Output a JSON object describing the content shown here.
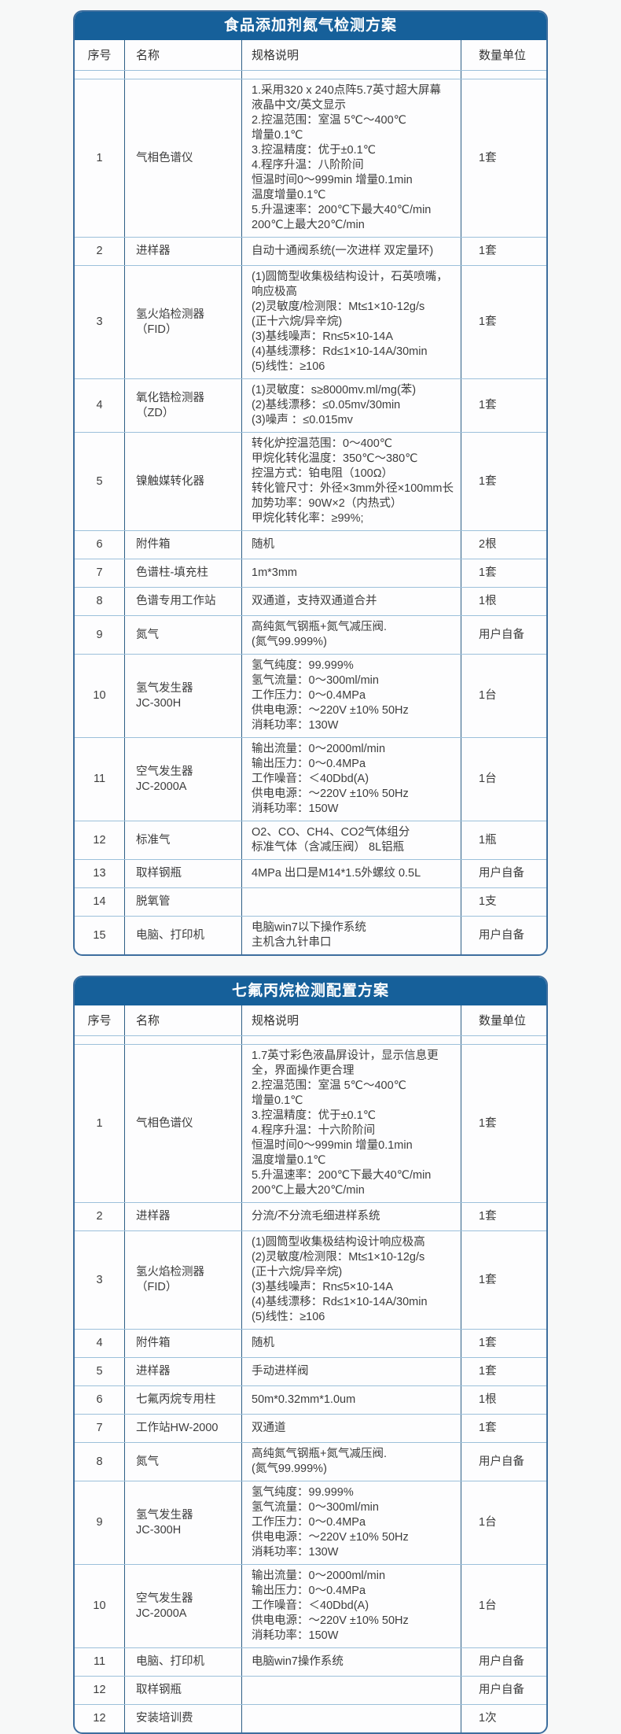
{
  "colors": {
    "header_blue": "#16609a",
    "divider_dark": "#2e5e85",
    "divider_light": "#9cc0da",
    "page_background": "#f7f8f8",
    "text": "#3d3d3d"
  },
  "tables": [
    {
      "title": "食品添加剂氮气检测方案",
      "columns": [
        "序号",
        "名称",
        "规格说明",
        "数量单位"
      ],
      "rows": [
        {
          "num": "1",
          "name": "气相色谱仪",
          "spec": "1.采用320 x 240点阵5.7英寸超大屏幕\n液晶中文/英文显示\n2.控温范围：室温 5℃～400℃\n增量0.1℃\n3.控温精度：优于±0.1℃\n4.程序升温：八阶阶间\n恒温时间0～999min 增量0.1min\n温度增量0.1℃\n5.升温速率：200℃下最大40℃/min\n200℃上最大20℃/min",
          "unit": "1套"
        },
        {
          "num": "2",
          "name": "进样器",
          "spec": "自动十通阀系统(一次进样 双定量环)",
          "unit": "1套"
        },
        {
          "num": "3",
          "name": "氢火焰检测器（FID）",
          "spec": "(1)圆筒型收集极结构设计，石英喷嘴，\n响应极高\n(2)灵敏度/检测限：Mt≤1×10-12g/s\n(正十六烷/异辛烷)\n(3)基线噪声：Rn≤5×10-14A\n(4)基线漂移：Rd≤1×10-14A/30min\n(5)线性：≥106",
          "unit": "1套"
        },
        {
          "num": "4",
          "name": "氧化锆检测器（ZD）",
          "spec": "(1)灵敏度：s≥8000mv.ml/mg(苯)\n(2)基线漂移：≤0.05mv/30min\n(3)噪声 ：≤0.015mv",
          "unit": "1套"
        },
        {
          "num": "5",
          "name": "镍触媒转化器",
          "spec": "转化炉控温范围：0～400℃\n甲烷化转化温度：350℃～380℃\n控温方式：铂电阻（100Ω）\n转化管尺寸：外径×3mm外径×100mm长\n加势功率：90W×2（内热式）\n甲烷化转化率：≥99%;",
          "unit": "1套"
        },
        {
          "num": "6",
          "name": "附件箱",
          "spec": "随机",
          "unit": "2根"
        },
        {
          "num": "7",
          "name": "色谱柱-填充柱",
          "spec": "1m*3mm",
          "unit": "1套"
        },
        {
          "num": "8",
          "name": "色谱专用工作站",
          "spec": "双通道，支持双通道合并",
          "unit": "1根"
        },
        {
          "num": "9",
          "name": "氮气",
          "spec": "高纯氮气钢瓶+氮气减压阀.\n(氮气99.999%)",
          "unit": "用户自备"
        },
        {
          "num": "10",
          "name": "氢气发生器\nJC-300H",
          "spec": "氢气纯度：99.999%\n氢气流量：0～300ml/min\n工作压力：0～0.4MPa\n供电电源：～220V ±10% 50Hz\n消耗功率：130W",
          "unit": "1台"
        },
        {
          "num": "11",
          "name": "空气发生器\nJC-2000A",
          "spec": "输出流量：0～2000ml/min\n输出压力：0～0.4MPa\n工作噪音：＜40Dbd(A)\n供电电源：～220V ±10% 50Hz\n消耗功率：150W",
          "unit": "1台"
        },
        {
          "num": "12",
          "name": "标准气",
          "spec": "O2、CO、CH4、CO2气体组分\n标准气体（含减压阀） 8L铝瓶",
          "unit": "1瓶"
        },
        {
          "num": "13",
          "name": "取样钢瓶",
          "spec": "4MPa 出口是M14*1.5外螺纹 0.5L",
          "unit": "用户自备"
        },
        {
          "num": "14",
          "name": "脱氧管",
          "spec": "",
          "unit": "1支"
        },
        {
          "num": "15",
          "name": "电脑、打印机",
          "spec": "电脑win7以下操作系统\n主机含九针串口",
          "unit": "用户自备"
        }
      ]
    },
    {
      "title": "七氟丙烷检测配置方案",
      "columns": [
        "序号",
        "名称",
        "规格说明",
        "数量单位"
      ],
      "rows": [
        {
          "num": "1",
          "name": "气相色谱仪",
          "spec": "1.7英寸彩色液晶屏设计，显示信息更\n全，界面操作更合理\n2.控温范围：室温 5℃～400℃\n增量0.1℃\n3.控温精度：优于±0.1℃\n4.程序升温：十六阶阶间\n恒温时间0～999min 增量0.1min\n温度增量0.1℃\n5.升温速率：200℃下最大40℃/min\n200℃上最大20℃/min",
          "unit": "1套"
        },
        {
          "num": "2",
          "name": "进样器",
          "spec": "分流/不分流毛细进样系统",
          "unit": "1套"
        },
        {
          "num": "3",
          "name": "氢火焰检测器（FID）",
          "spec": "(1)圆筒型收集极结构设计响应极高\n(2)灵敏度/检测限：Mt≤1×10-12g/s\n(正十六烷/异辛烷)\n(3)基线噪声：Rn≤5×10-14A\n(4)基线漂移：Rd≤1×10-14A/30min\n(5)线性：≥106",
          "unit": "1套"
        },
        {
          "num": "4",
          "name": "附件箱",
          "spec": "随机",
          "unit": "1套"
        },
        {
          "num": "5",
          "name": "进样器",
          "spec": "手动进样阀",
          "unit": "1套"
        },
        {
          "num": "6",
          "name": "七氟丙烷专用柱",
          "spec": "50m*0.32mm*1.0um",
          "unit": "1根"
        },
        {
          "num": "7",
          "name": "工作站HW-2000",
          "spec": "双通道",
          "unit": "1套"
        },
        {
          "num": "8",
          "name": "氮气",
          "spec": "高纯氮气钢瓶+氮气减压阀.\n(氮气99.999%)",
          "unit": "用户自备"
        },
        {
          "num": "9",
          "name": "氢气发生器\nJC-300H",
          "spec": "氢气纯度：99.999%\n氢气流量：0～300ml/min\n工作压力：0～0.4MPa\n供电电源：～220V ±10% 50Hz\n消耗功率：130W",
          "unit": "1台"
        },
        {
          "num": "10",
          "name": "空气发生器\nJC-2000A",
          "spec": "输出流量：0～2000ml/min\n输出压力：0～0.4MPa\n工作噪音：＜40Dbd(A)\n供电电源：～220V ±10% 50Hz\n消耗功率：150W",
          "unit": "1台"
        },
        {
          "num": "11",
          "name": "电脑、打印机",
          "spec": "电脑win7操作系统",
          "unit": "用户自备"
        },
        {
          "num": "12",
          "name": "取样钢瓶",
          "spec": "",
          "unit": "用户自备"
        },
        {
          "num": "12",
          "name": "安装培训费",
          "spec": "",
          "unit": "1次"
        }
      ]
    }
  ]
}
